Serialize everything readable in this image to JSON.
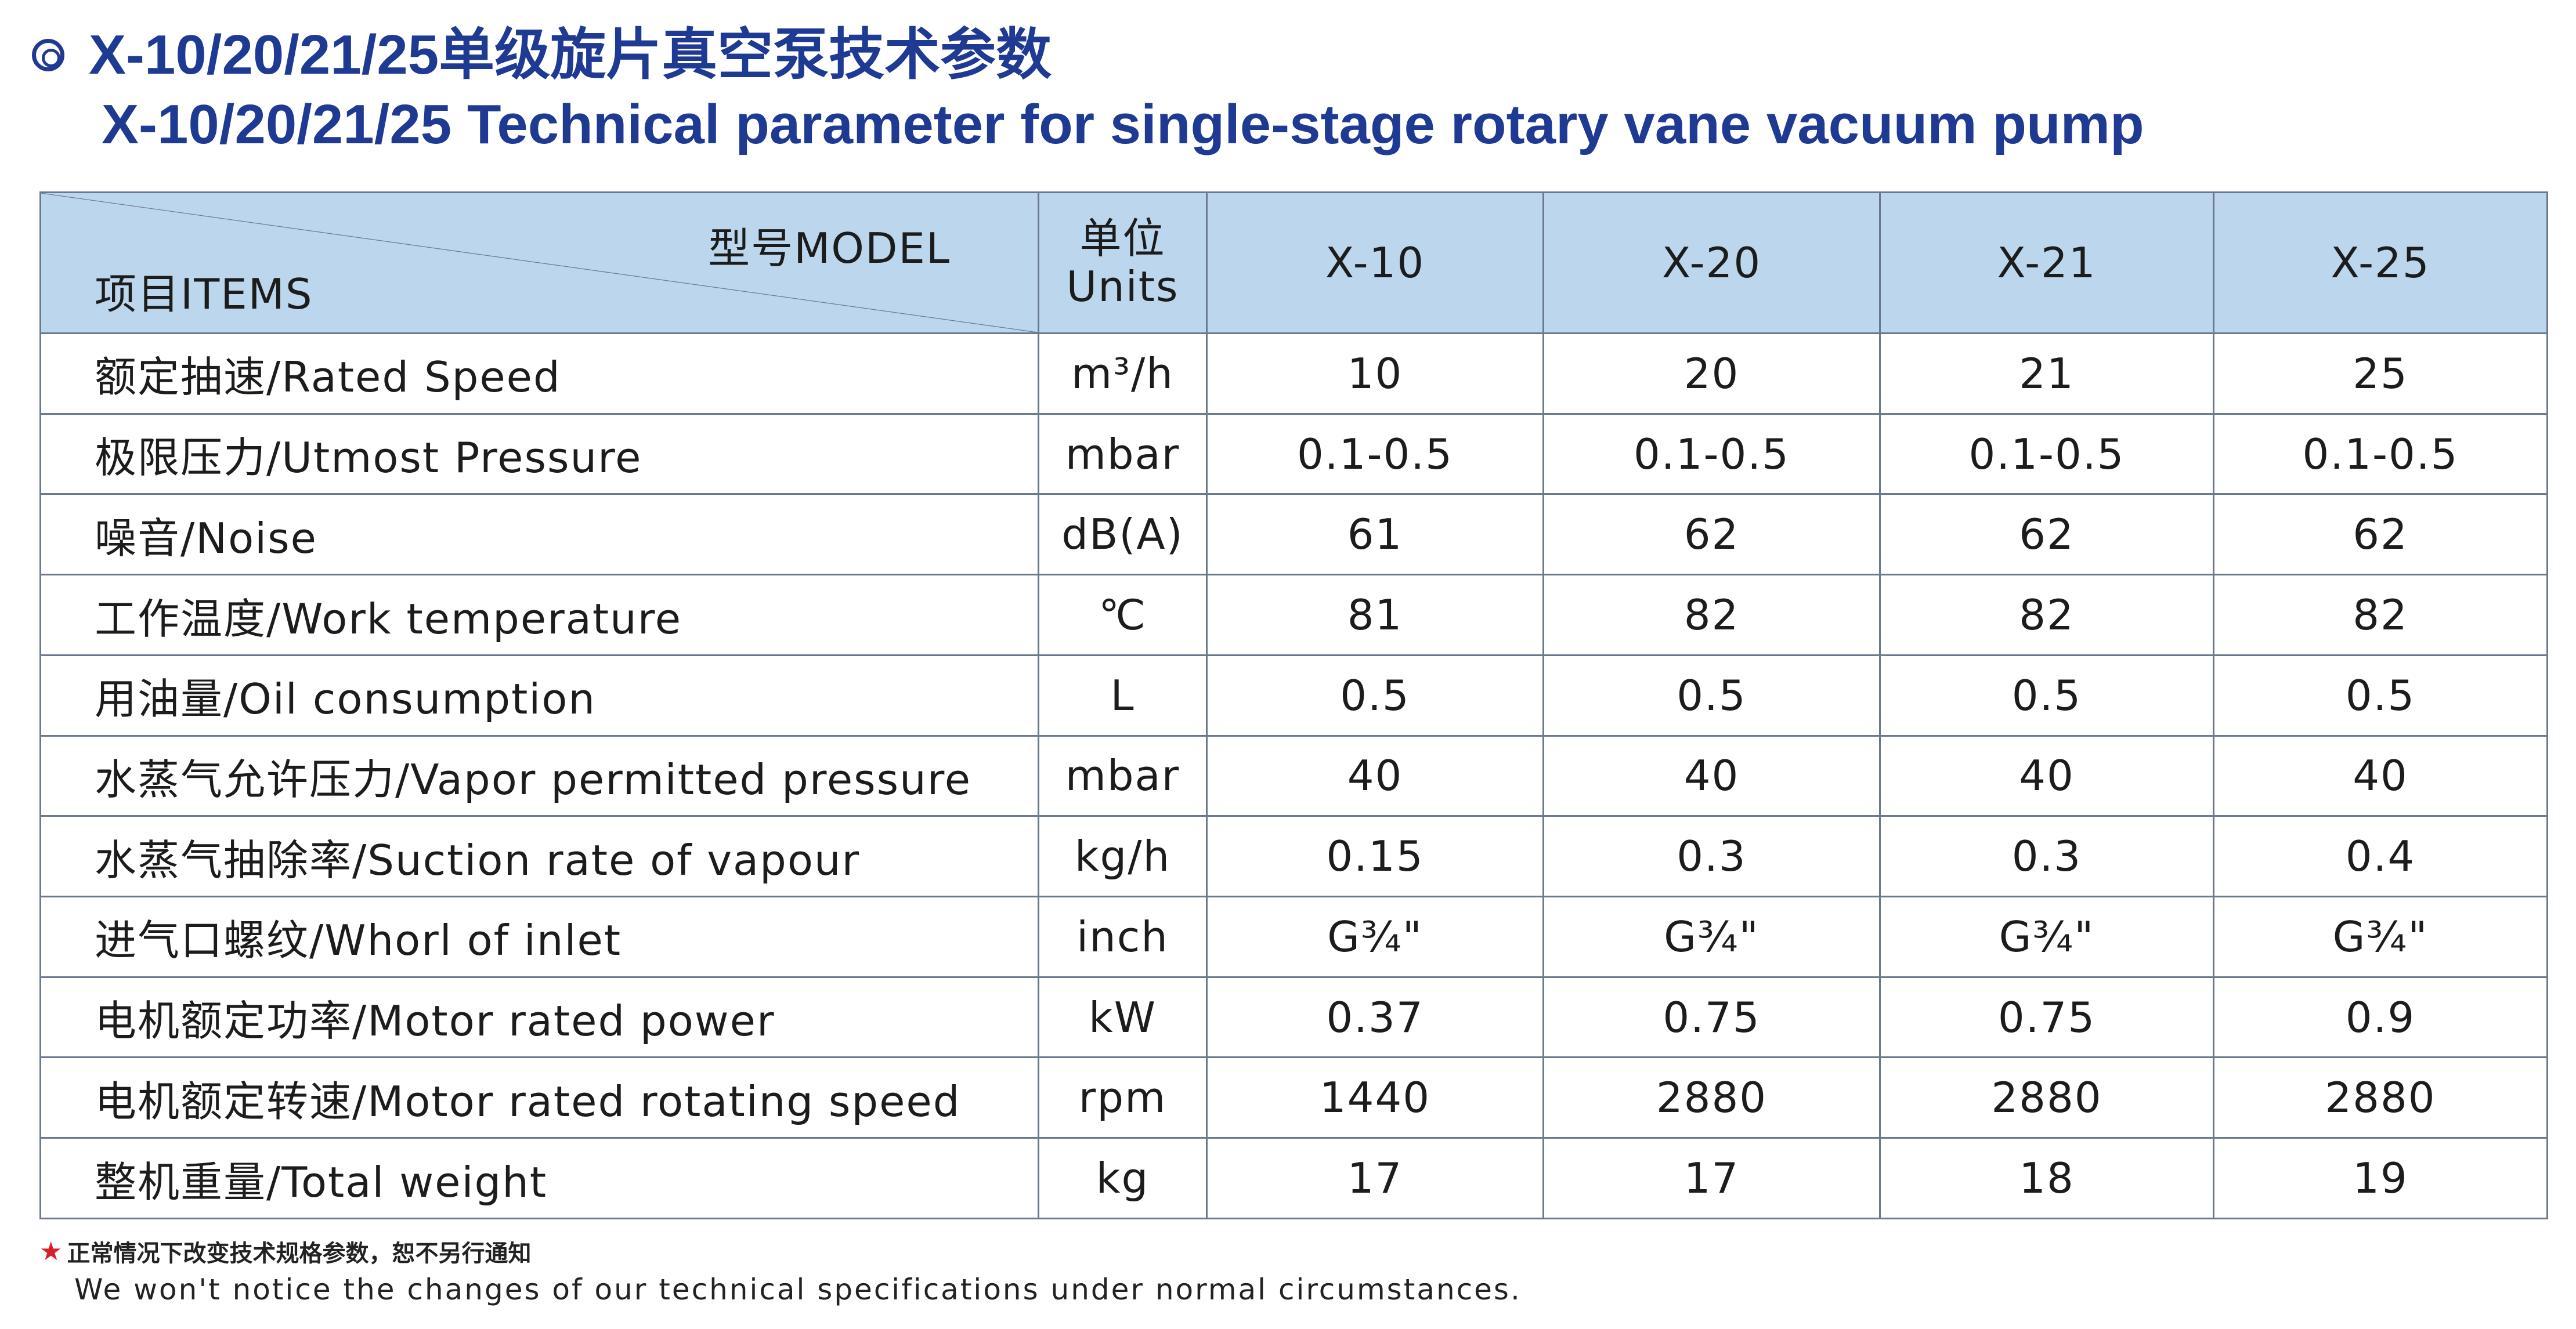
{
  "title": {
    "cn": "X-10/20/21/25单级旋片真空泵技术参数",
    "en": "X-10/20/21/25 Technical parameter for single-stage rotary vane vacuum pump"
  },
  "table": {
    "corner_model": "型号MODEL",
    "corner_items": "项目ITEMS",
    "units_cn": "单位",
    "units_en": "Units",
    "models": [
      "X-10",
      "X-20",
      "X-21",
      "X-25"
    ],
    "rows": [
      {
        "item": "额定抽速/Rated Speed",
        "unit": "m³/h",
        "values": [
          "10",
          "20",
          "21",
          "25"
        ]
      },
      {
        "item": "极限压力/Utmost Pressure",
        "unit": "mbar",
        "values": [
          "0.1-0.5",
          "0.1-0.5",
          "0.1-0.5",
          "0.1-0.5"
        ]
      },
      {
        "item": "噪音/Noise",
        "unit": "dB(A)",
        "values": [
          "61",
          "62",
          "62",
          "62"
        ]
      },
      {
        "item": "工作温度/Work temperature",
        "unit": "℃",
        "values": [
          "81",
          "82",
          "82",
          "82"
        ]
      },
      {
        "item": "用油量/Oil consumption",
        "unit": "L",
        "values": [
          "0.5",
          "0.5",
          "0.5",
          "0.5"
        ]
      },
      {
        "item": "水蒸气允许压力/Vapor permitted pressure",
        "unit": "mbar",
        "values": [
          "40",
          "40",
          "40",
          "40"
        ]
      },
      {
        "item": "水蒸气抽除率/Suction rate of vapour",
        "unit": "kg/h",
        "values": [
          "0.15",
          "0.3",
          "0.3",
          "0.4"
        ]
      },
      {
        "item": "进气口螺纹/Whorl of inlet",
        "unit": "inch",
        "values": [
          "G¾\"",
          "G¾\"",
          "G¾\"",
          "G¾\""
        ]
      },
      {
        "item": "电机额定功率/Motor rated power",
        "unit": "kW",
        "values": [
          "0.37",
          "0.75",
          "0.75",
          "0.9"
        ]
      },
      {
        "item": "电机额定转速/Motor rated rotating speed",
        "unit": "rpm",
        "values": [
          "1440",
          "2880",
          "2880",
          "2880"
        ]
      },
      {
        "item": "整机重量/Total weight",
        "unit": "kg",
        "values": [
          "17",
          "17",
          "18",
          "19"
        ]
      }
    ]
  },
  "footnote": {
    "cn": "正常情况下改变技术规格参数，恕不另行通知",
    "en": "We won't notice the changes of our technical specifications under normal circumstances."
  },
  "colors": {
    "title": "#1f3a93",
    "header_bg": "#bcd6ee",
    "border": "#6a7a8c",
    "star": "#d8202a"
  }
}
